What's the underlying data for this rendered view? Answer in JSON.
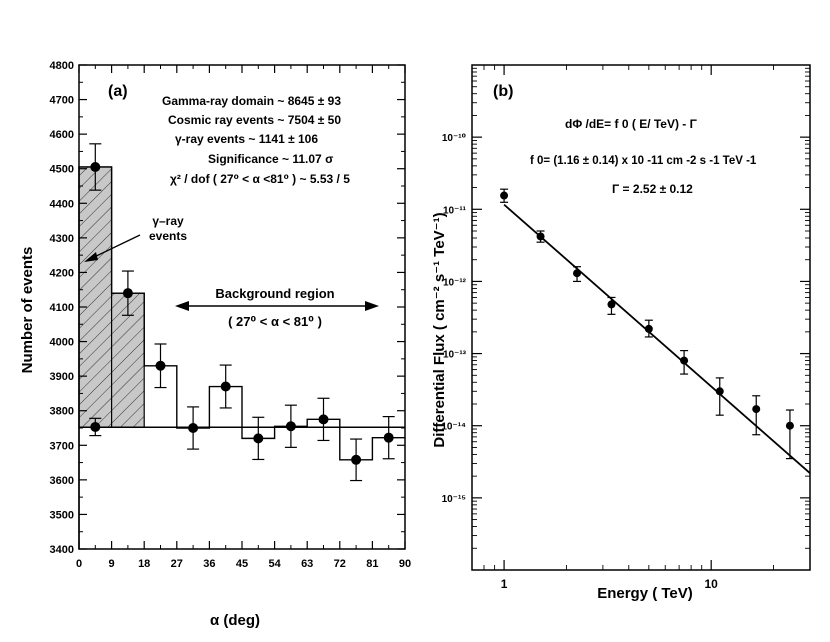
{
  "chart_data": [
    {
      "panel": "(a)",
      "type": "bar",
      "xlabel": "α (deg)",
      "ylabel": "Number of events",
      "xlim": [
        0,
        90
      ],
      "ylim": [
        3400,
        4800
      ],
      "xticks": [
        "0",
        "9",
        "18",
        "27",
        "36",
        "45",
        "54",
        "63",
        "72",
        "81",
        "90"
      ],
      "yticks": [
        "3400",
        "3500",
        "3600",
        "3700",
        "3800",
        "3900",
        "4000",
        "4100",
        "4200",
        "4300",
        "4400",
        "4500",
        "4600",
        "4700",
        "4800"
      ],
      "bin_width": 9,
      "on_source": {
        "centers": [
          4.5,
          13.5,
          22.5,
          31.5,
          40.5,
          49.5,
          58.5,
          67.5,
          76.5,
          85.5
        ],
        "values": [
          4505,
          4140,
          3930,
          3750,
          3870,
          3720,
          3755,
          3775,
          3658,
          3722
        ],
        "errors": [
          67,
          64,
          63,
          61,
          62,
          61,
          61,
          61,
          60,
          61
        ]
      },
      "off_source_low": {
        "center": 4.5,
        "value": 3753,
        "error": 25
      },
      "background_level": 3752,
      "gamma_excess_bins": [
        {
          "from": 0,
          "to": 9,
          "top": 4505
        },
        {
          "from": 9,
          "to": 18,
          "top": 4140
        }
      ],
      "annotations": {
        "panel_label": "(a)",
        "stats": [
          "Gamma-ray domain  ~ 8645 ± 93",
          "Cosmic ray events  ~ 7504 ± 50",
          "γ-ray events  ~ 1141 ± 106",
          "Significance  ~ 11.07 σ",
          "χ² / dof ( 27⁰ < α <81⁰ ) ~ 5.53 / 5"
        ],
        "gamma_events_label": [
          "γ–ray",
          "events"
        ],
        "background_label": "Background region",
        "background_range": "( 27⁰ < α < 81⁰ )"
      }
    },
    {
      "panel": "(b)",
      "type": "scatter",
      "xscale": "log",
      "yscale": "log",
      "xlabel": "Energy ( TeV)",
      "ylabel": "Differential Flux ( cm⁻² s⁻¹ TeV⁻¹)",
      "xlim": [
        0.7,
        30
      ],
      "ylim": [
        1e-16,
        1e-09
      ],
      "xtick_labels": [
        "1",
        "10"
      ],
      "ytick_labels": [
        "10⁻¹⁰",
        "10⁻¹¹",
        "10⁻¹²",
        "10⁻¹³",
        "10⁻¹⁴",
        "10⁻¹⁵"
      ],
      "points": [
        {
          "x": 1.0,
          "y": 1.55e-11,
          "lo": 1.25e-11,
          "hi": 1.9e-11
        },
        {
          "x": 1.5,
          "y": 4.2e-12,
          "lo": 3.5e-12,
          "hi": 5e-12
        },
        {
          "x": 2.25,
          "y": 1.3e-12,
          "lo": 1e-12,
          "hi": 1.6e-12
        },
        {
          "x": 3.3,
          "y": 4.8e-13,
          "lo": 3.5e-13,
          "hi": 6e-13
        },
        {
          "x": 5.0,
          "y": 2.2e-13,
          "lo": 1.7e-13,
          "hi": 2.9e-13
        },
        {
          "x": 7.4,
          "y": 8e-14,
          "lo": 5.2e-14,
          "hi": 1.1e-13
        },
        {
          "x": 11.0,
          "y": 3e-14,
          "lo": 1.4e-14,
          "hi": 4.6e-14
        },
        {
          "x": 16.5,
          "y": 1.7e-14,
          "lo": 7.5e-15,
          "hi": 2.6e-14
        },
        {
          "x": 24.0,
          "y": 1e-14,
          "lo": 3.5e-15,
          "hi": 1.65e-14
        }
      ],
      "fit": {
        "f0": 1.16e-11,
        "gamma": 2.52,
        "x_from": 1.0,
        "x_to": 30
      },
      "annotations": {
        "panel_label": "(b)",
        "formula": "dΦ /dE= f 0 ( E/ TeV) - Γ",
        "f0": "f 0= (1.16 ± 0.14) x 10 -11 cm -2 s -1 TeV -1",
        "gamma": "Γ = 2.52 ± 0.12"
      }
    }
  ]
}
